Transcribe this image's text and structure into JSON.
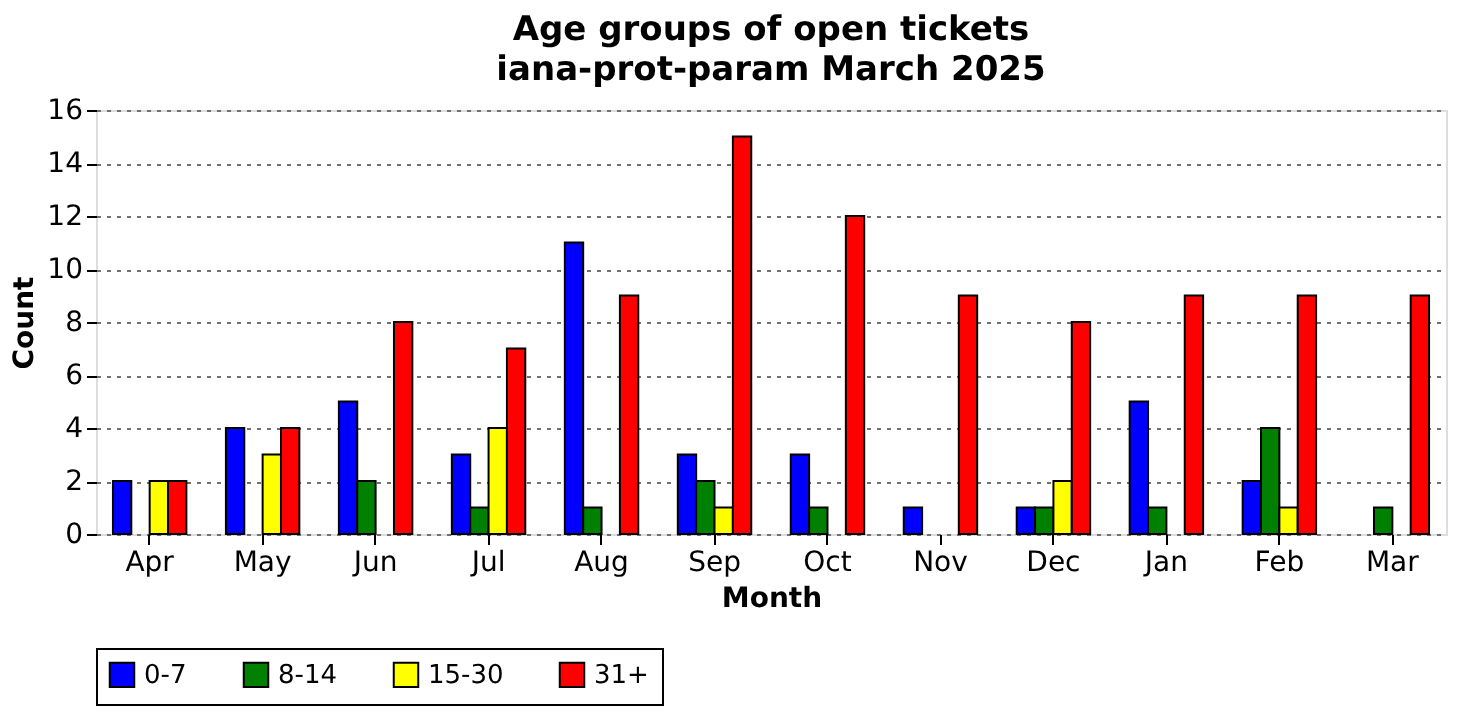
{
  "chart_data": {
    "type": "bar",
    "title": "Age groups of open tickets",
    "subtitle": "iana-prot-param March 2025",
    "xlabel": "Month",
    "ylabel": "Count",
    "categories": [
      "Apr",
      "May",
      "Jun",
      "Jul",
      "Aug",
      "Sep",
      "Oct",
      "Nov",
      "Dec",
      "Jan",
      "Feb",
      "Mar"
    ],
    "series": [
      {
        "name": "0-7",
        "color": "#0000ff",
        "values": [
          2,
          4,
          5,
          3,
          11,
          3,
          3,
          1,
          1,
          5,
          2,
          0
        ]
      },
      {
        "name": "8-14",
        "color": "#008000",
        "values": [
          0,
          0,
          2,
          1,
          1,
          2,
          1,
          0,
          1,
          1,
          4,
          1
        ]
      },
      {
        "name": "15-30",
        "color": "#ffff00",
        "values": [
          2,
          3,
          0,
          4,
          0,
          1,
          0,
          0,
          2,
          0,
          1,
          0
        ]
      },
      {
        "name": "31+",
        "color": "#ff0000",
        "values": [
          2,
          4,
          8,
          7,
          9,
          15,
          12,
          9,
          8,
          9,
          9,
          9
        ]
      }
    ],
    "ylim": [
      0,
      16
    ],
    "yticks": [
      0,
      2,
      4,
      6,
      8,
      10,
      12,
      14,
      16
    ],
    "grid": "y",
    "legend": "bottom"
  }
}
